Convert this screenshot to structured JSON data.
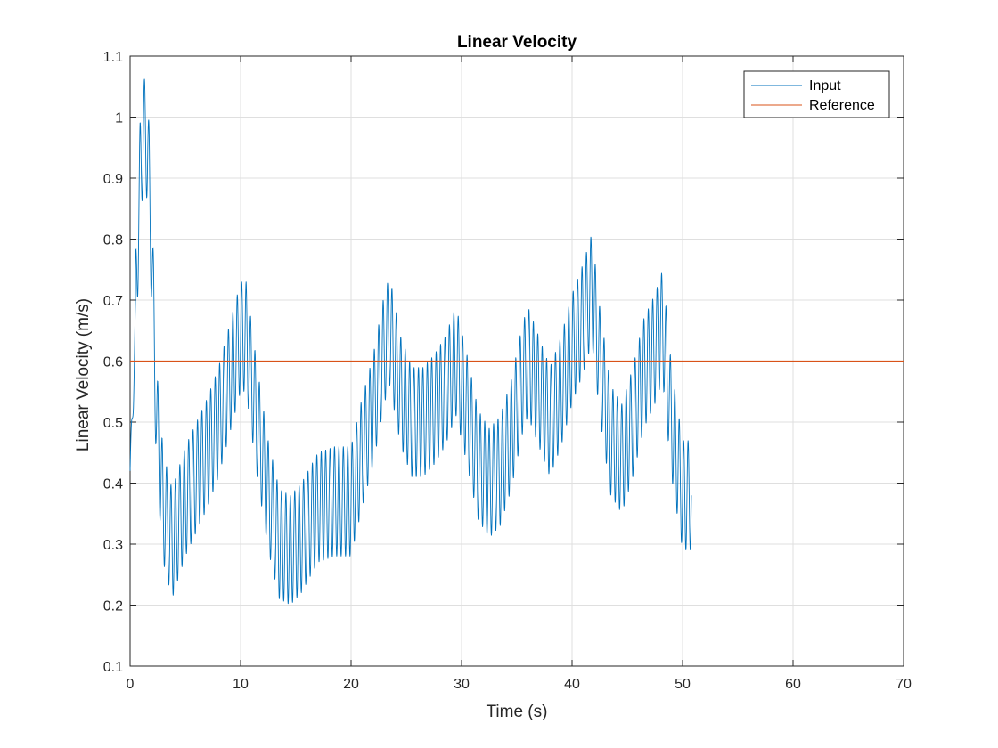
{
  "chart_data": {
    "type": "line",
    "title": "Linear Velocity",
    "xlabel": "Time (s)",
    "ylabel": "Linear Velocity (m/s)",
    "xlim": [
      0,
      70
    ],
    "ylim": [
      0.1,
      1.1
    ],
    "xticks": [
      0,
      10,
      20,
      30,
      40,
      50,
      60,
      70
    ],
    "yticks": [
      0.1,
      0.2,
      0.3,
      0.4,
      0.5,
      0.6,
      0.7,
      0.8,
      0.9,
      1,
      1.1
    ],
    "xtick_labels": [
      "0",
      "10",
      "20",
      "30",
      "40",
      "50",
      "60",
      "70"
    ],
    "ytick_labels": [
      "0.1",
      "0.2",
      "0.3",
      "0.4",
      "0.5",
      "0.6",
      "0.7",
      "0.8",
      "0.9",
      "1",
      "1.1"
    ],
    "grid": true,
    "legend_position": "top-right",
    "series": [
      {
        "name": "Input",
        "color": "#0072bd",
        "oscillation_amplitude": 0.09,
        "oscillation_period": 0.4,
        "x": [
          0,
          0.3,
          0.6,
          0.9,
          1.2,
          1.6,
          2.0,
          2.4,
          3.0,
          3.8,
          5,
          6,
          7,
          8,
          9,
          10,
          10.5,
          11.5,
          12.5,
          13.5,
          14.5,
          15.5,
          17,
          18.5,
          20,
          21,
          22,
          23,
          23.5,
          24.5,
          25.5,
          26.5,
          27.5,
          28.5,
          29.5,
          30.5,
          31.5,
          32.5,
          33.5,
          34.5,
          35.5,
          36,
          37,
          38,
          39,
          40,
          41,
          41.8,
          42.5,
          43.5,
          44.5,
          45.5,
          46.5,
          47.5,
          48.2,
          49,
          50,
          50.8
        ],
        "y": [
          0.42,
          0.55,
          0.75,
          0.9,
          0.98,
          0.95,
          0.75,
          0.5,
          0.36,
          0.3,
          0.37,
          0.41,
          0.45,
          0.5,
          0.57,
          0.64,
          0.64,
          0.5,
          0.38,
          0.3,
          0.29,
          0.31,
          0.36,
          0.37,
          0.37,
          0.45,
          0.52,
          0.62,
          0.65,
          0.55,
          0.5,
          0.5,
          0.52,
          0.55,
          0.6,
          0.52,
          0.43,
          0.4,
          0.42,
          0.48,
          0.57,
          0.6,
          0.55,
          0.5,
          0.55,
          0.62,
          0.67,
          0.72,
          0.6,
          0.47,
          0.44,
          0.5,
          0.58,
          0.62,
          0.66,
          0.5,
          0.38,
          0.38
        ]
      },
      {
        "name": "Reference",
        "color": "#d95319",
        "x": [
          0,
          70
        ],
        "y": [
          0.6,
          0.6
        ]
      }
    ]
  }
}
